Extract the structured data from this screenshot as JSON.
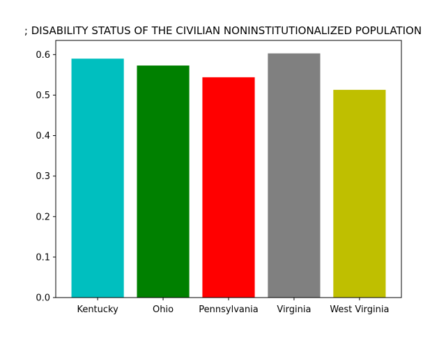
{
  "chart_data": {
    "type": "bar",
    "title": "; DISABILITY STATUS OF THE CIVILIAN NONINSTITUTIONALIZED POPULATION",
    "xlabel": "",
    "ylabel": "",
    "categories": [
      "Kentucky",
      "Ohio",
      "Pennsylvania",
      "Virginia",
      "West Virginia"
    ],
    "values": [
      0.59,
      0.573,
      0.544,
      0.603,
      0.513
    ],
    "colors": [
      "#00bfbf",
      "#008000",
      "#ff0000",
      "#808080",
      "#bfbf00"
    ],
    "ylim": [
      0,
      0.635
    ],
    "yticks": [
      0.0,
      0.1,
      0.2,
      0.3,
      0.4,
      0.5,
      0.6
    ],
    "ytick_labels": [
      "0.0",
      "0.1",
      "0.2",
      "0.3",
      "0.4",
      "0.5",
      "0.6"
    ],
    "grid": false,
    "legend": "none"
  }
}
